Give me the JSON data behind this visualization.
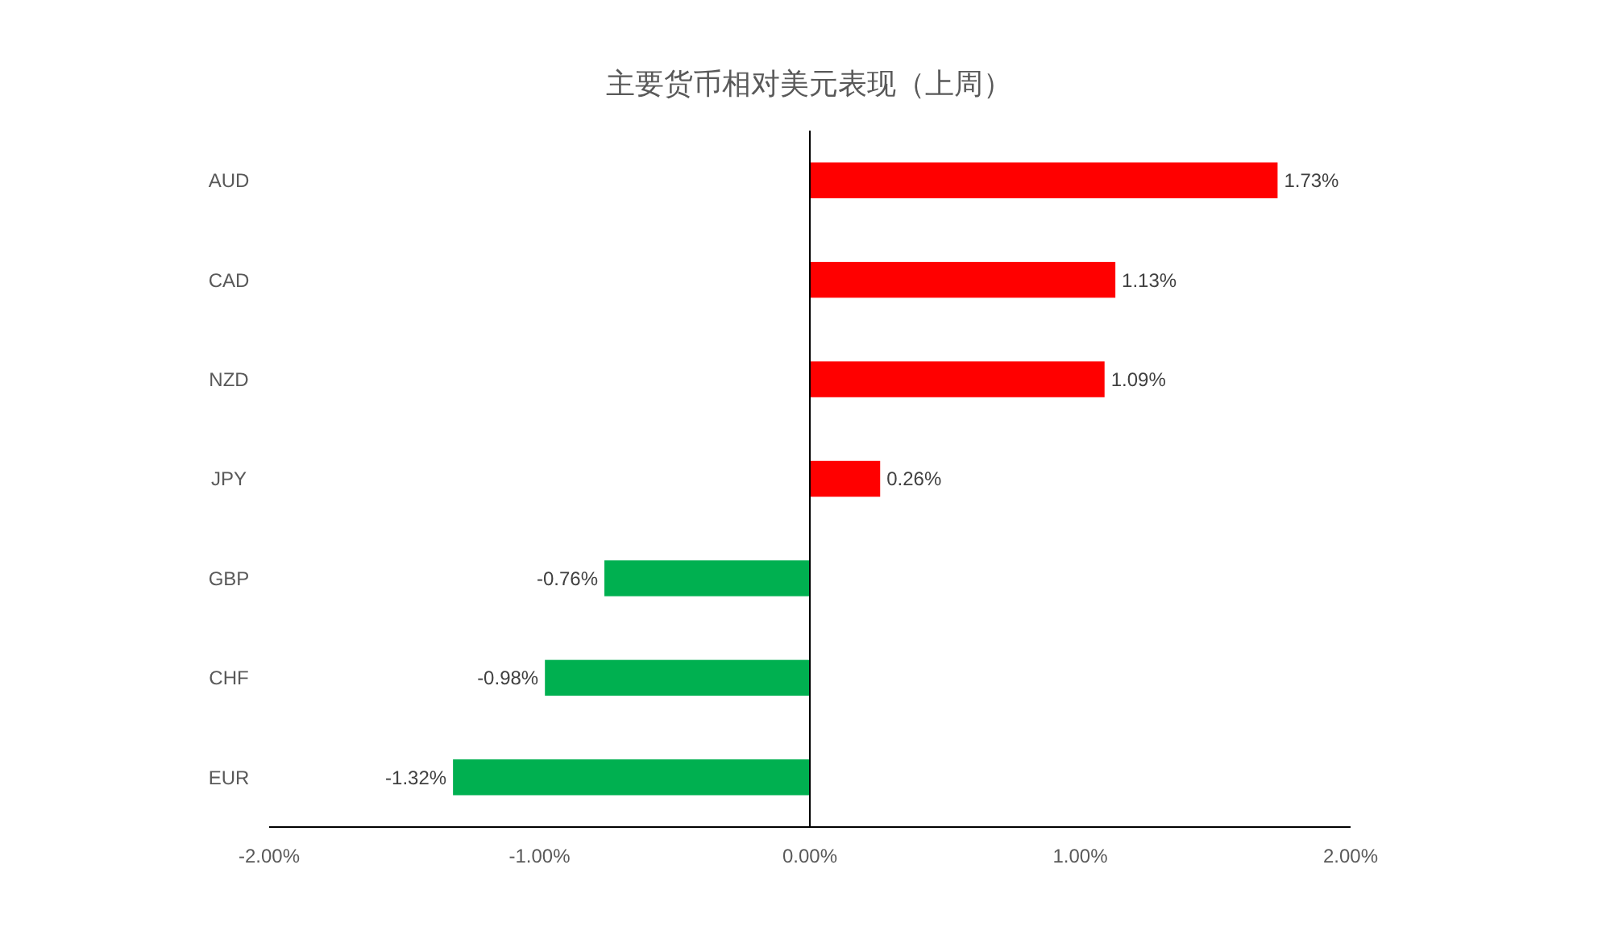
{
  "chart_data": {
    "type": "bar",
    "orientation": "horizontal",
    "title": "主要货币相对美元表现（上周）",
    "categories": [
      "AUD",
      "CAD",
      "NZD",
      "JPY",
      "GBP",
      "CHF",
      "EUR"
    ],
    "values": [
      1.73,
      1.13,
      1.09,
      0.26,
      -0.76,
      -0.98,
      -1.32
    ],
    "colors": [
      "#ff0000",
      "#ff0000",
      "#ff0000",
      "#ff0000",
      "#00b050",
      "#00b050",
      "#00b050"
    ],
    "value_labels": [
      "1.73%",
      "1.13%",
      "1.09%",
      "0.26%",
      "-0.76%",
      "-0.98%",
      "-1.32%"
    ],
    "xlim": [
      -2,
      2
    ],
    "xticks": [
      {
        "value": -2,
        "label": "-2.00%"
      },
      {
        "value": -1,
        "label": "-1.00%"
      },
      {
        "value": 0,
        "label": "0.00%"
      },
      {
        "value": 1,
        "label": "1.00%"
      },
      {
        "value": 2,
        "label": "2.00%"
      }
    ]
  }
}
